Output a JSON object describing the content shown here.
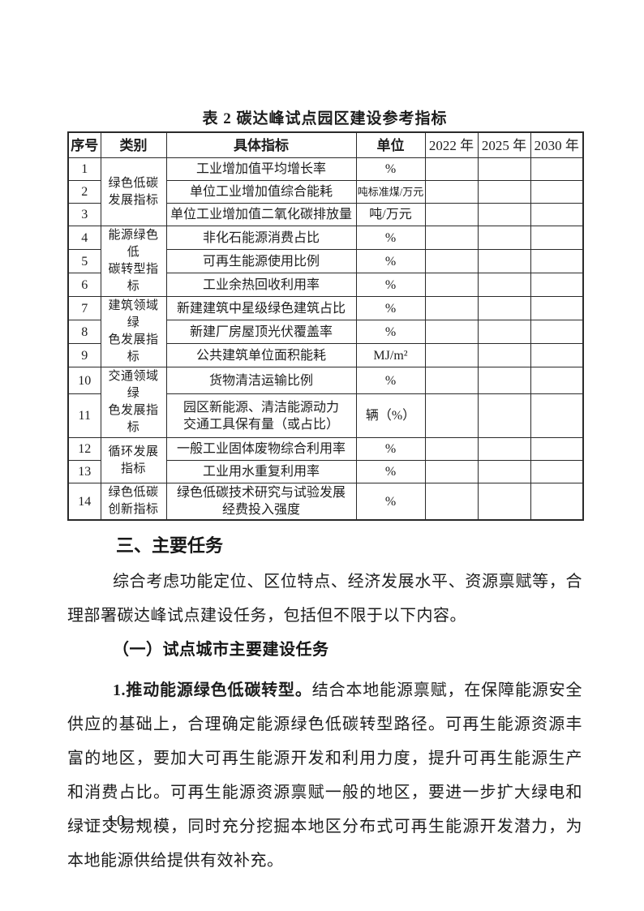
{
  "table": {
    "title": "表 2 碳达峰试点园区建设参考指标",
    "headers": [
      "序号",
      "类别",
      "具体指标",
      "单位",
      "2022 年",
      "2025 年",
      "2030 年"
    ],
    "year_columns": [
      "2022 年",
      "2025 年",
      "2030 年"
    ],
    "groups": [
      {
        "category": "绿色低碳\n发展指标",
        "rows": [
          {
            "no": "1",
            "indicator": "工业增加值平均增长率",
            "unit": "%",
            "values": [
              "",
              "",
              ""
            ]
          },
          {
            "no": "2",
            "indicator": "单位工业增加值综合能耗",
            "unit": "吨标准煤/万元",
            "values": [
              "",
              "",
              ""
            ]
          },
          {
            "no": "3",
            "indicator": "单位工业增加值二氧化碳排放量",
            "unit": "吨/万元",
            "values": [
              "",
              "",
              ""
            ]
          }
        ]
      },
      {
        "category": "能源绿色低\n碳转型指标",
        "rows": [
          {
            "no": "4",
            "indicator": "非化石能源消费占比",
            "unit": "%",
            "values": [
              "",
              "",
              ""
            ]
          },
          {
            "no": "5",
            "indicator": "可再生能源使用比例",
            "unit": "%",
            "values": [
              "",
              "",
              ""
            ]
          },
          {
            "no": "6",
            "indicator": "工业余热回收利用率",
            "unit": "%",
            "values": [
              "",
              "",
              ""
            ]
          }
        ]
      },
      {
        "category": "建筑领域绿\n色发展指标",
        "rows": [
          {
            "no": "7",
            "indicator": "新建建筑中星级绿色建筑占比",
            "unit": "%",
            "values": [
              "",
              "",
              ""
            ]
          },
          {
            "no": "8",
            "indicator": "新建厂房屋顶光伏覆盖率",
            "unit": "%",
            "values": [
              "",
              "",
              ""
            ]
          },
          {
            "no": "9",
            "indicator": "公共建筑单位面积能耗",
            "unit": "MJ/m²",
            "values": [
              "",
              "",
              ""
            ]
          }
        ]
      },
      {
        "category": "交通领域绿\n色发展指标",
        "rows": [
          {
            "no": "10",
            "indicator": "货物清洁运输比例",
            "unit": "%",
            "values": [
              "",
              "",
              ""
            ]
          },
          {
            "no": "11",
            "indicator": "园区新能源、清洁能源动力\n交通工具保有量（或占比）",
            "unit": "辆（%）",
            "values": [
              "",
              "",
              ""
            ]
          }
        ]
      },
      {
        "category": "循环发展\n指标",
        "rows": [
          {
            "no": "12",
            "indicator": "一般工业固体废物综合利用率",
            "unit": "%",
            "values": [
              "",
              "",
              ""
            ]
          },
          {
            "no": "13",
            "indicator": "工业用水重复利用率",
            "unit": "%",
            "values": [
              "",
              "",
              ""
            ]
          }
        ]
      },
      {
        "category": "绿色低碳\n创新指标",
        "rows": [
          {
            "no": "14",
            "indicator": "绿色低碳技术研究与试验发展\n经费投入强度",
            "unit": "%",
            "values": [
              "",
              "",
              ""
            ]
          }
        ]
      }
    ]
  },
  "section": {
    "heading": "三、主要任务",
    "intro": "综合考虑功能定位、区位特点、经济发展水平、资源禀赋等，合理部署碳达峰试点建设任务，包括但不限于以下内容。",
    "subheading": "（一）试点城市主要建设任务",
    "task1_lead": "1.推动能源绿色低碳转型。",
    "task1_body": "结合本地能源禀赋，在保障能源安全供应的基础上，合理确定能源绿色低碳转型路径。可再生能源资源丰富的地区，要加大可再生能源开发和利用力度，提升可再生能源生产和消费占比。可再生能源资源禀赋一般的地区，要进一步扩大绿电和绿证交易规模，同时充分挖掘本地区分布式可再生能源开发潜力，为本地能源供给提供有效补充。"
  },
  "footer": {
    "page_number": "— 10 —"
  }
}
